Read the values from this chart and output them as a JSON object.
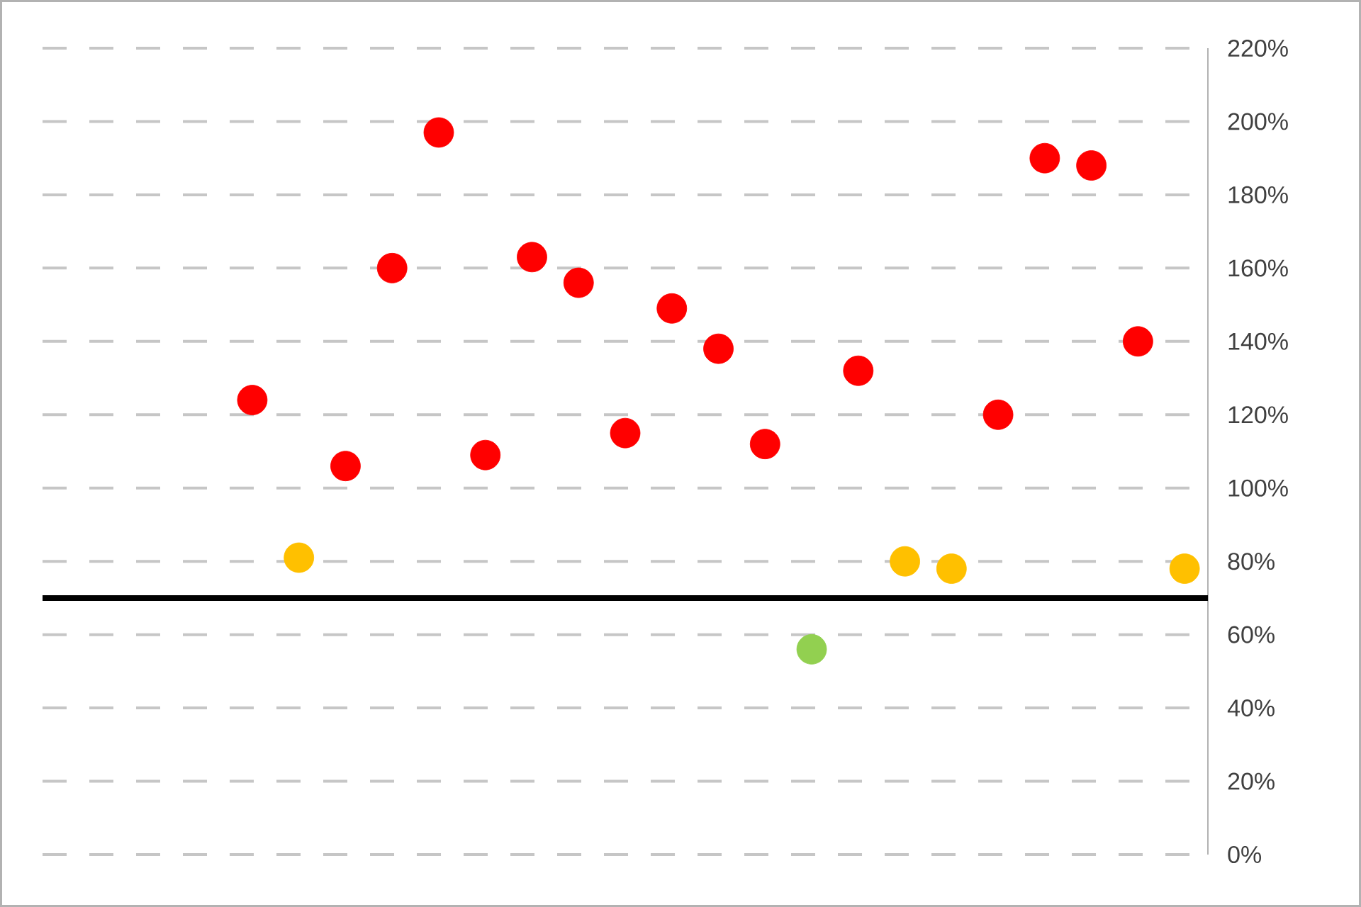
{
  "chart_data": {
    "type": "scatter",
    "categories": [
      null,
      null,
      null,
      null,
      null,
      null,
      null,
      null,
      null,
      null,
      null,
      null,
      null,
      null,
      null,
      null,
      null,
      null,
      null,
      null,
      null,
      null,
      null,
      null,
      null
    ],
    "values": [
      null,
      null,
      null,
      null,
      124,
      81,
      106,
      160,
      197,
      109,
      163,
      156,
      115,
      149,
      138,
      112,
      56,
      132,
      80,
      78,
      120,
      190,
      188,
      140,
      78
    ],
    "colors": [
      "#ff0000",
      "#ff0000",
      "#ff0000",
      "#ff0000",
      "#ff0000",
      "#ffc000",
      "#ff0000",
      "#ff0000",
      "#ff0000",
      "#ff0000",
      "#ff0000",
      "#ff0000",
      "#ff0000",
      "#ff0000",
      "#ff0000",
      "#ff0000",
      "#92d050",
      "#ff0000",
      "#ffc000",
      "#ffc000",
      "#ff0000",
      "#ff0000",
      "#ff0000",
      "#ff0000",
      "#ffc000"
    ],
    "marker": "circle",
    "ylim": [
      0,
      220
    ],
    "yticks": [
      {
        "value": 0,
        "label": "0%"
      },
      {
        "value": 20,
        "label": "20%"
      },
      {
        "value": 40,
        "label": "40%"
      },
      {
        "value": 60,
        "label": "60%"
      },
      {
        "value": 80,
        "label": "80%"
      },
      {
        "value": 100,
        "label": "100%"
      },
      {
        "value": 120,
        "label": "120%"
      },
      {
        "value": 140,
        "label": "140%"
      },
      {
        "value": 160,
        "label": "160%"
      },
      {
        "value": 180,
        "label": "180%"
      },
      {
        "value": 200,
        "label": "200%"
      },
      {
        "value": 220,
        "label": "220%"
      }
    ],
    "grid": "y",
    "ref_lines": [
      {
        "axis": "y",
        "value": 70,
        "color": "#000000"
      }
    ],
    "tick_labels": "y"
  }
}
